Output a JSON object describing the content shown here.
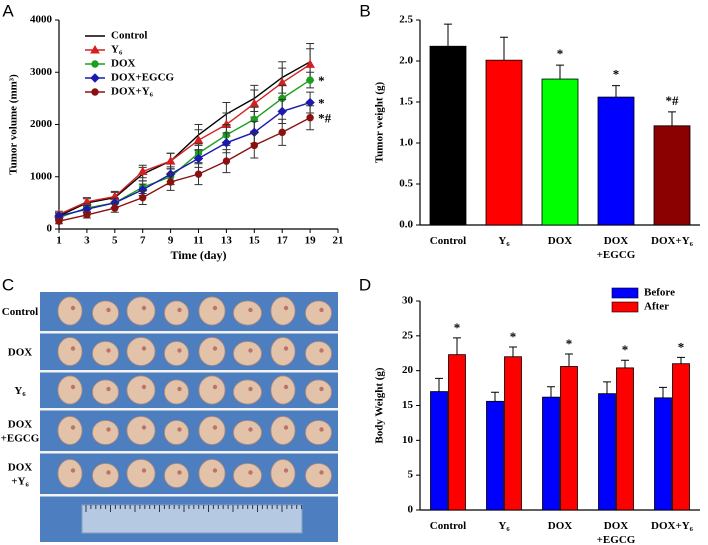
{
  "chart_data": [
    {
      "type": "line",
      "panel": "A",
      "x_label": "Time (day)",
      "y_label": "Tumor volume (mm³)",
      "x": [
        1,
        3,
        5,
        7,
        9,
        11,
        13,
        15,
        17,
        19
      ],
      "xlim": [
        1,
        21
      ],
      "xticks": [
        1,
        3,
        5,
        7,
        9,
        11,
        13,
        15,
        17,
        19,
        21
      ],
      "ylim": [
        0,
        4000
      ],
      "yticks": [
        0,
        1000,
        2000,
        3000,
        4000
      ],
      "legend": "upper left",
      "series": [
        {
          "name": "Control",
          "color": "#000000",
          "marker": "none",
          "values": [
            250,
            500,
            600,
            1050,
            1300,
            1800,
            2200,
            2500,
            2900,
            3200
          ],
          "errors": [
            60,
            80,
            100,
            130,
            150,
            200,
            220,
            250,
            300,
            350
          ]
        },
        {
          "name": "Y₆",
          "color": "#d42020",
          "marker": "triangle",
          "values": [
            280,
            520,
            620,
            1100,
            1300,
            1700,
            2000,
            2400,
            2800,
            3150
          ],
          "errors": [
            60,
            80,
            100,
            120,
            150,
            200,
            220,
            260,
            280,
            300
          ]
        },
        {
          "name": "DOX",
          "color": "#1aa01a",
          "marker": "circle",
          "values": [
            220,
            400,
            500,
            800,
            1000,
            1450,
            1800,
            2100,
            2500,
            2850
          ],
          "errors": [
            50,
            80,
            90,
            120,
            150,
            180,
            200,
            230,
            250,
            150
          ],
          "annotation": "*"
        },
        {
          "name": "DOX+EGCG",
          "color": "#1a1ab0",
          "marker": "diamond",
          "values": [
            250,
            380,
            500,
            750,
            1050,
            1350,
            1650,
            1850,
            2250,
            2420
          ],
          "errors": [
            50,
            70,
            90,
            110,
            140,
            170,
            190,
            210,
            230,
            200
          ],
          "annotation": "*"
        },
        {
          "name": "DOX+Y₆",
          "color": "#8b1010",
          "marker": "circle",
          "values": [
            150,
            270,
            400,
            600,
            900,
            1050,
            1300,
            1600,
            1850,
            2130
          ],
          "errors": [
            50,
            60,
            80,
            130,
            160,
            200,
            220,
            240,
            250,
            230
          ],
          "annotation": "*#"
        }
      ]
    },
    {
      "type": "bar",
      "panel": "B",
      "y_label": "Tumor weight (g)",
      "categories": [
        "Control",
        "Y₆",
        "DOX",
        "DOX +EGCG",
        "DOX+Y₆"
      ],
      "values": [
        2.18,
        2.01,
        1.78,
        1.56,
        1.21
      ],
      "errors": [
        0.27,
        0.28,
        0.17,
        0.14,
        0.17
      ],
      "colors": [
        "#000000",
        "#ff0000",
        "#00ff00",
        "#0000ff",
        "#8b0000"
      ],
      "annotations": [
        null,
        null,
        "*",
        "*",
        "*#"
      ],
      "ylim": [
        0,
        2.5
      ],
      "yticks": [
        {
          "value": 0,
          "label": "0.0"
        },
        0.5,
        {
          "value": 1,
          "label": "1.0"
        },
        1.5,
        {
          "value": 2,
          "label": "2.0"
        },
        2.5
      ]
    },
    {
      "type": "photo",
      "panel": "C",
      "rows": [
        "Control",
        "DOX",
        "Y₆",
        "DOX +EGCG",
        "DOX +Y₆"
      ]
    },
    {
      "type": "grouped_bar",
      "panel": "D",
      "y_label": "Body Weight (g)",
      "categories": [
        "Control",
        "Y₆",
        "DOX",
        "DOX +EGCG",
        "DOX+Y₆"
      ],
      "legend": "upper right",
      "series": [
        {
          "name": "Before",
          "color": "#0000ff",
          "values": [
            17.0,
            15.6,
            16.2,
            16.7,
            16.1
          ],
          "errors": [
            1.9,
            1.3,
            1.5,
            1.7,
            1.5
          ]
        },
        {
          "name": "After",
          "color": "#ff0000",
          "values": [
            22.3,
            22.0,
            20.6,
            20.4,
            21.0
          ],
          "errors": [
            2.4,
            1.4,
            1.8,
            1.1,
            0.9
          ],
          "annotations": [
            "*",
            "*",
            "*",
            "*",
            "*"
          ]
        }
      ],
      "ylim": [
        0,
        30
      ],
      "yticks": [
        0,
        5,
        10,
        15,
        20,
        25,
        30
      ]
    }
  ]
}
